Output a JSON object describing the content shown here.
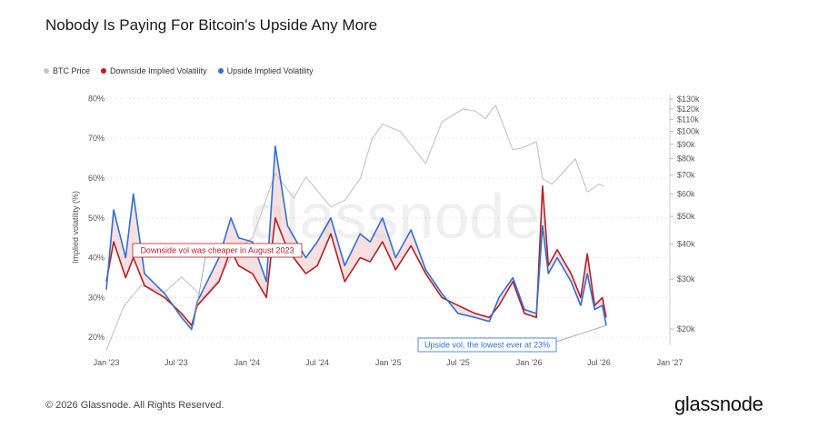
{
  "header": {
    "title": "Nobody Is Paying For Bitcoin's Upside Any More"
  },
  "legend": [
    {
      "label": "BTC Price",
      "color": "#c8c8c8"
    },
    {
      "label": "Downside Implied Volatility",
      "color": "#b51f24"
    },
    {
      "label": "Upside Implied Volatility",
      "color": "#2f6fd6"
    }
  ],
  "footer": {
    "copyright": "© 2026 Glassnode. All Rights Reserved.",
    "brand": "glassnode",
    "watermark": "glassnode"
  },
  "chart_data": {
    "type": "line",
    "title": "Nobody Is Paying For Bitcoin's Upside Any More",
    "ylabel": "Implied volatility (%)",
    "ylim": [
      18,
      81
    ],
    "y_ticks": [
      "80%",
      "70%",
      "60%",
      "50%",
      "40%",
      "30%",
      "20%"
    ],
    "y2_scale": "log",
    "y2lim": [
      17500,
      135000
    ],
    "y2_ticks": [
      "$130k",
      "$120k",
      "$110k",
      "$100k",
      "$90k",
      "$80k",
      "$70k",
      "$60k",
      "$50k",
      "$40k",
      "$30k",
      "$20k"
    ],
    "x_ticks": [
      "Jan '23",
      "Jul '23",
      "Jan '24",
      "Jul '24",
      "Jan '25",
      "Jul '25",
      "Jan '26",
      "Jul '26",
      "Jan '27"
    ],
    "grid": true,
    "legend_position": "top-left",
    "series": [
      {
        "name": "BTC Price",
        "axis": "right",
        "x": [
          "2023-01-01",
          "2023-02-15",
          "2023-04-01",
          "2023-06-01",
          "2023-07-15",
          "2023-09-10",
          "2023-10-20",
          "2023-12-01",
          "2024-01-15",
          "2024-03-14",
          "2024-05-01",
          "2024-06-01",
          "2024-08-05",
          "2024-09-10",
          "2024-10-20",
          "2024-11-20",
          "2024-12-17",
          "2025-02-01",
          "2025-04-08",
          "2025-05-20",
          "2025-07-14",
          "2025-08-14",
          "2025-09-10",
          "2025-10-06",
          "2025-11-20",
          "2025-12-20",
          "2026-01-20",
          "2026-02-05",
          "2026-03-01",
          "2026-04-01",
          "2026-05-01",
          "2026-06-01",
          "2026-07-01",
          "2026-07-15"
        ],
        "values": [
          16800,
          24000,
          28500,
          27000,
          30500,
          25800,
          30000,
          38000,
          42000,
          71000,
          58000,
          69000,
          54000,
          57000,
          68000,
          94000,
          106000,
          100000,
          77000,
          108000,
          120000,
          118000,
          111000,
          124000,
          86000,
          88000,
          92000,
          68000,
          65000,
          72000,
          80000,
          61000,
          65000,
          64000
        ]
      },
      {
        "name": "Downside Implied Volatility",
        "axis": "left",
        "x": [
          "2023-01-01",
          "2023-01-20",
          "2023-02-20",
          "2023-03-12",
          "2023-04-10",
          "2023-06-01",
          "2023-07-15",
          "2023-08-10",
          "2023-08-25",
          "2023-10-20",
          "2023-11-20",
          "2023-12-10",
          "2024-01-15",
          "2024-02-20",
          "2024-03-14",
          "2024-04-15",
          "2024-06-01",
          "2024-07-01",
          "2024-08-05",
          "2024-09-10",
          "2024-10-20",
          "2024-11-15",
          "2024-12-17",
          "2025-01-20",
          "2025-03-01",
          "2025-04-08",
          "2025-05-20",
          "2025-07-01",
          "2025-08-14",
          "2025-09-20",
          "2025-10-15",
          "2025-11-20",
          "2025-12-20",
          "2026-01-20",
          "2026-02-05",
          "2026-02-20",
          "2026-03-15",
          "2026-04-20",
          "2026-05-15",
          "2026-06-01",
          "2026-06-20",
          "2026-07-10",
          "2026-07-20"
        ],
        "values": [
          34,
          44,
          35,
          40,
          33,
          30,
          26,
          23,
          28,
          34,
          42,
          38,
          36,
          30,
          50,
          42,
          36,
          38,
          46,
          34,
          40,
          39,
          44,
          37,
          43,
          36,
          30,
          28,
          26,
          25,
          28,
          34,
          26,
          25,
          58,
          38,
          42,
          36,
          30,
          41,
          28,
          30,
          25
        ]
      },
      {
        "name": "Upside Implied Volatility",
        "axis": "left",
        "x": [
          "2023-01-01",
          "2023-01-20",
          "2023-02-20",
          "2023-03-12",
          "2023-04-10",
          "2023-06-01",
          "2023-07-15",
          "2023-08-10",
          "2023-08-25",
          "2023-10-20",
          "2023-11-20",
          "2023-12-10",
          "2024-01-15",
          "2024-02-20",
          "2024-03-14",
          "2024-04-15",
          "2024-06-01",
          "2024-07-01",
          "2024-08-05",
          "2024-09-10",
          "2024-10-20",
          "2024-11-15",
          "2024-12-17",
          "2025-01-20",
          "2025-03-01",
          "2025-04-08",
          "2025-05-20",
          "2025-07-01",
          "2025-08-14",
          "2025-09-20",
          "2025-10-15",
          "2025-11-20",
          "2025-12-20",
          "2026-01-20",
          "2026-02-05",
          "2026-02-20",
          "2026-03-15",
          "2026-04-20",
          "2026-05-15",
          "2026-06-01",
          "2026-06-20",
          "2026-07-10",
          "2026-07-20"
        ],
        "values": [
          32,
          52,
          40,
          56,
          36,
          31,
          25,
          22,
          29,
          40,
          50,
          45,
          44,
          34,
          68,
          48,
          40,
          44,
          50,
          38,
          46,
          44,
          50,
          40,
          47,
          37,
          31,
          26,
          25,
          24,
          30,
          35,
          27,
          26,
          48,
          36,
          40,
          34,
          28,
          36,
          27,
          28,
          23
        ]
      }
    ],
    "annotations": [
      {
        "text": "Downside vol was cheaper in August 2023",
        "x": "2023-08-15",
        "y": 23,
        "color": "#b51f24"
      },
      {
        "text": "Upside vol, the lowest ever at 23%",
        "x": "2026-07-20",
        "y": 23,
        "color": "#2f6fd6"
      }
    ]
  }
}
